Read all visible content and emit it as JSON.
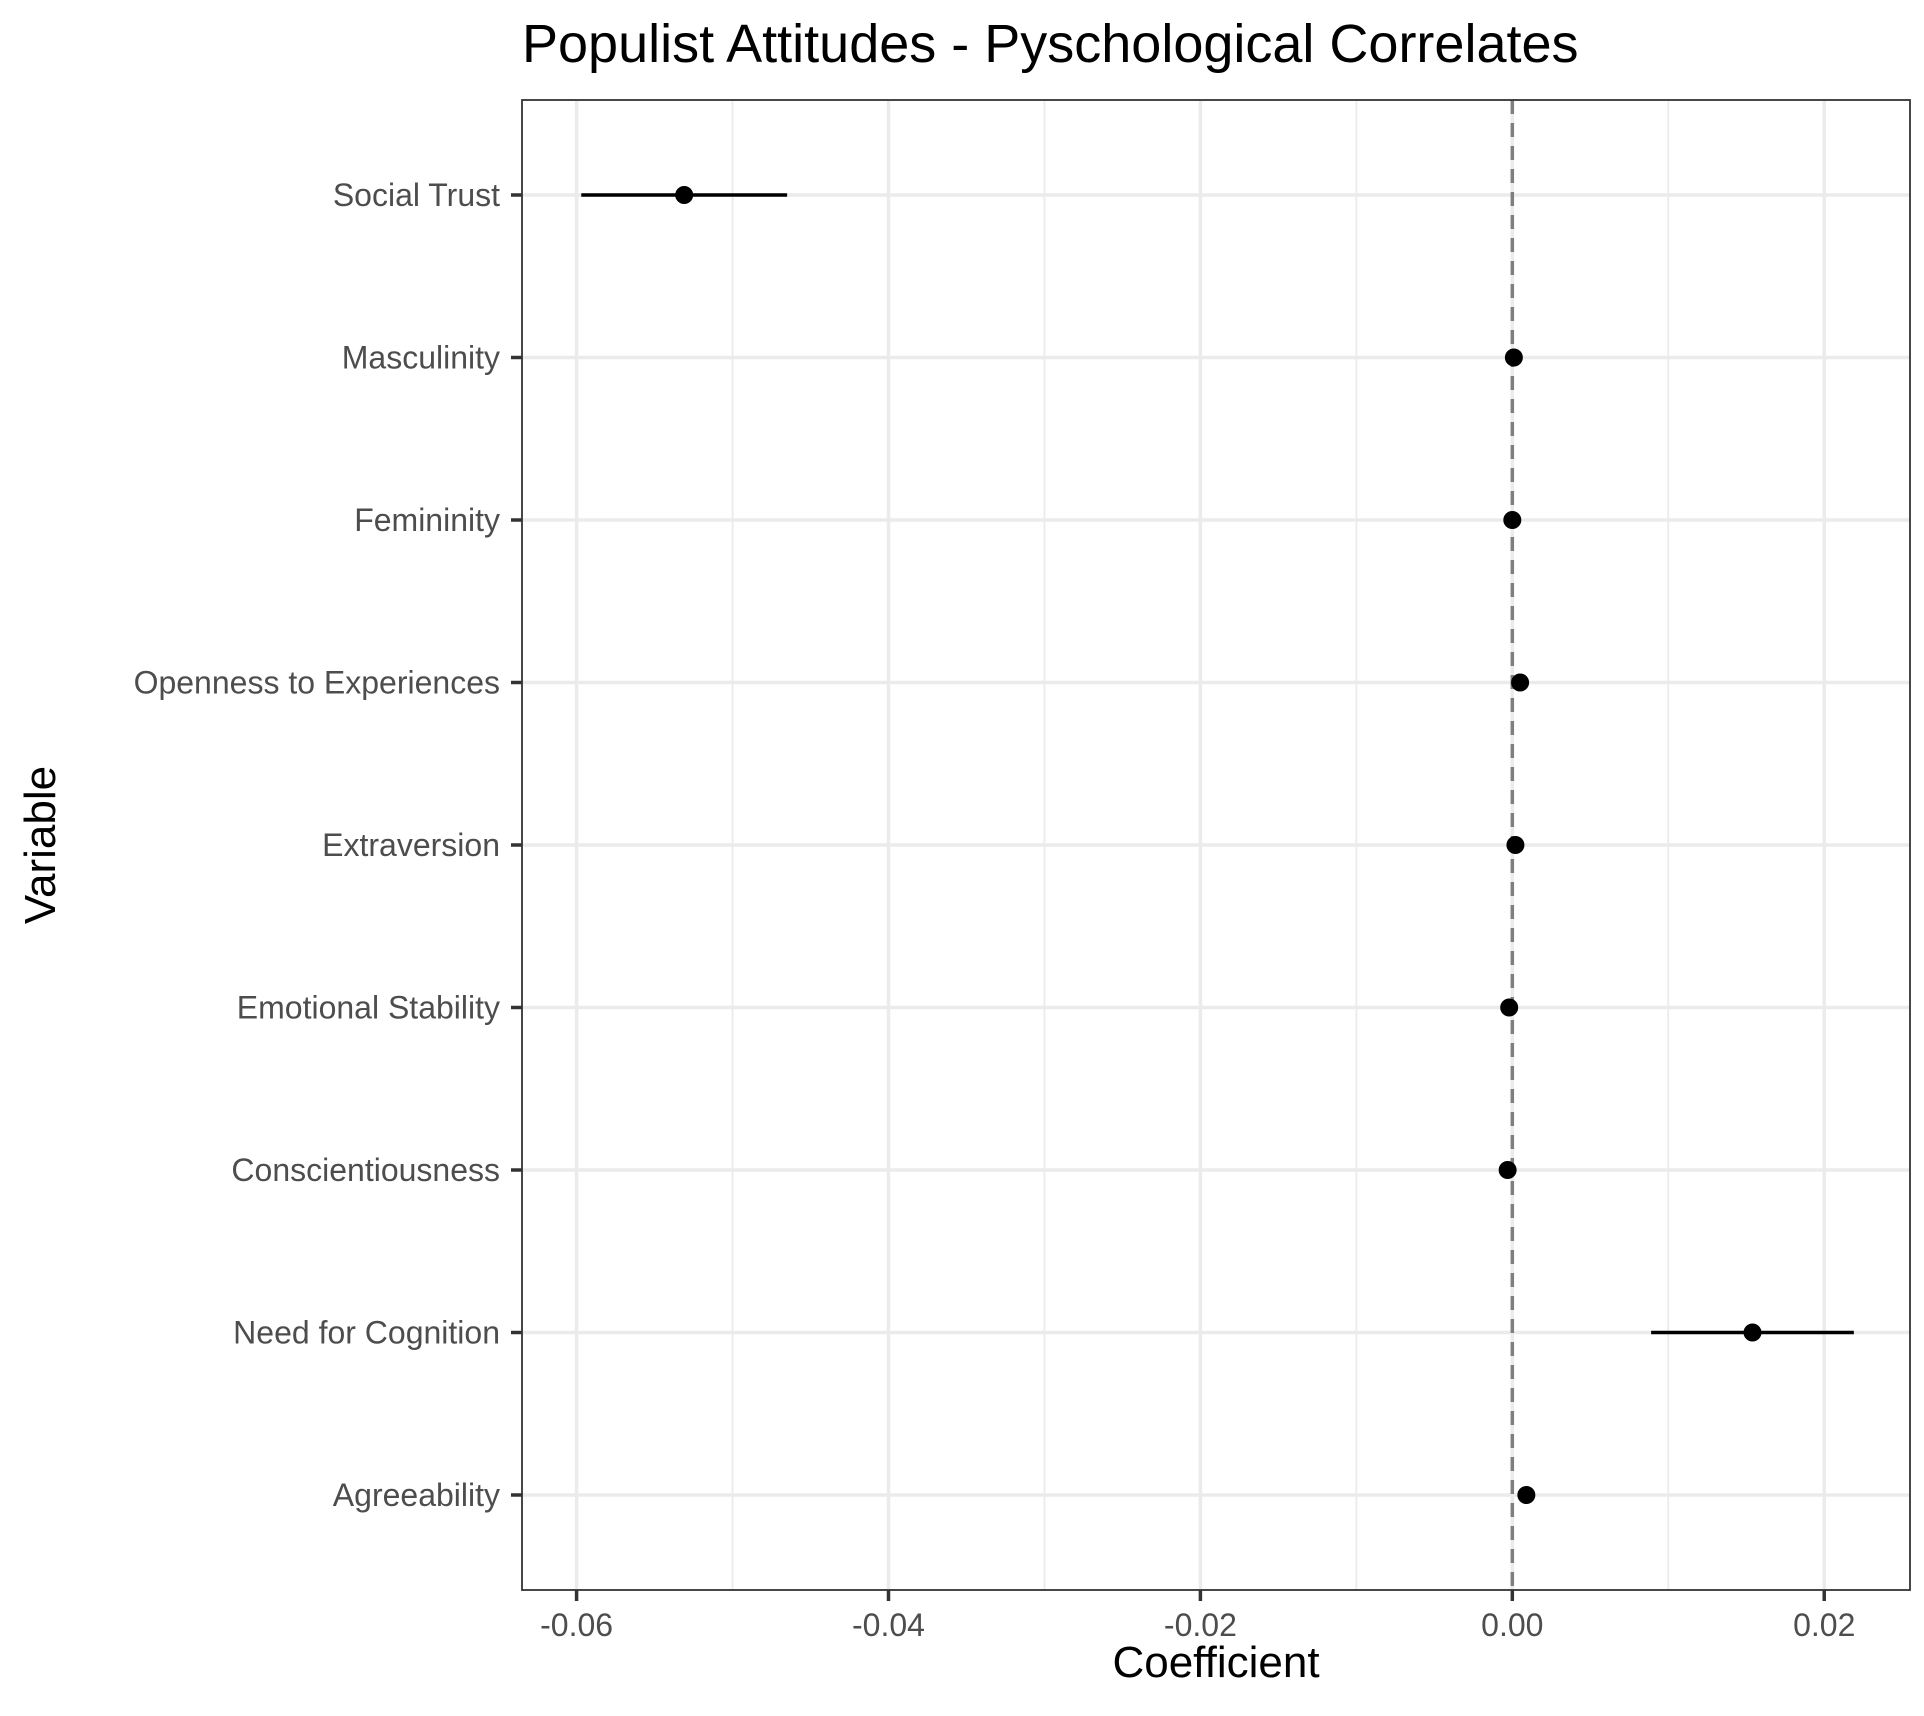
{
  "chart_data": {
    "type": "scatter",
    "title": "Populist Attitudes - Pyschological Correlates",
    "xlabel": "Coefficient",
    "ylabel": "Variable",
    "xlim": [
      -0.0635,
      0.0255
    ],
    "x_ticks": [
      -0.06,
      -0.04,
      -0.02,
      0.0,
      0.02
    ],
    "x_tick_labels": [
      "-0.06",
      "-0.04",
      "-0.02",
      "0.00",
      "0.02"
    ],
    "grid": true,
    "reference_line": {
      "x": 0,
      "style": "dashed"
    },
    "categories": [
      "Social Trust",
      "Masculinity",
      "Femininity",
      "Openness to Experiences",
      "Extraversion",
      "Emotional Stability",
      "Conscientiousness",
      "Need for Cognition",
      "Agreeability"
    ],
    "points": [
      {
        "label": "Social Trust",
        "estimate": -0.0531,
        "low": -0.0597,
        "high": -0.0465
      },
      {
        "label": "Masculinity",
        "estimate": 0.0001,
        "low": 0.0001,
        "high": 0.0001
      },
      {
        "label": "Femininity",
        "estimate": 0.0,
        "low": 0.0,
        "high": 0.0
      },
      {
        "label": "Openness to Experiences",
        "estimate": 0.0005,
        "low": 0.0005,
        "high": 0.0005
      },
      {
        "label": "Extraversion",
        "estimate": 0.0002,
        "low": 0.0002,
        "high": 0.0002
      },
      {
        "label": "Emotional Stability",
        "estimate": -0.0002,
        "low": -0.0002,
        "high": -0.0002
      },
      {
        "label": "Conscientiousness",
        "estimate": -0.0003,
        "low": -0.0003,
        "high": -0.0003
      },
      {
        "label": "Need for Cognition",
        "estimate": 0.0154,
        "low": 0.0089,
        "high": 0.0219
      },
      {
        "label": "Agreeability",
        "estimate": 0.0009,
        "low": 0.0009,
        "high": 0.0009
      }
    ]
  }
}
